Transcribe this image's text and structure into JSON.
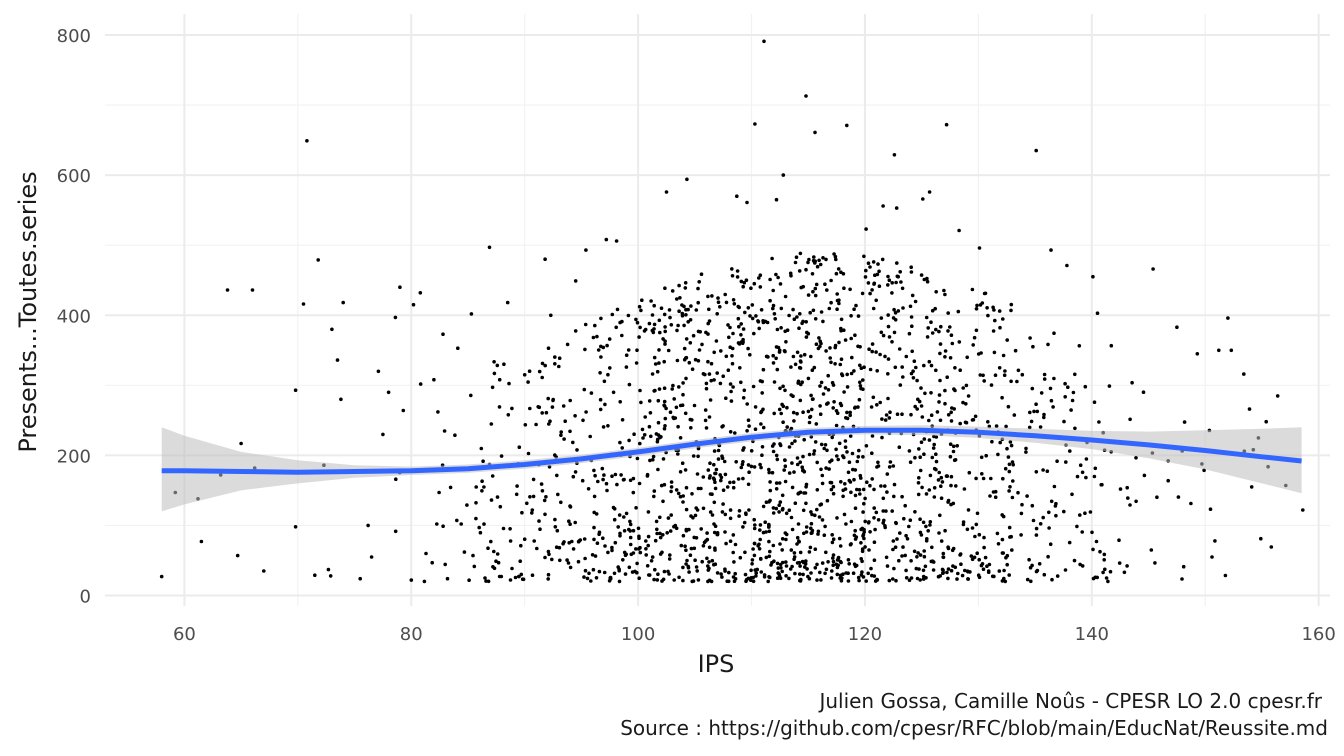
{
  "chart_data": {
    "type": "scatter",
    "xlabel": "IPS",
    "ylabel": "Presents...Toutes.series",
    "xlim": [
      53,
      161
    ],
    "ylim": [
      -15,
      830
    ],
    "x_ticks": [
      60,
      80,
      100,
      120,
      140,
      160
    ],
    "y_ticks": [
      0,
      200,
      400,
      600,
      800
    ],
    "x_tick_labels": [
      "60",
      "80",
      "100",
      "120",
      "140",
      "160"
    ],
    "y_tick_labels": [
      "0",
      "200",
      "400",
      "600",
      "800"
    ],
    "grid": true,
    "caption": [
      "Julien Gossa, Camille Noûs - CPESR LO 2.0 cpesr.fr",
      "Source : https://github.com/cpesr/RFC/blob/main/EducNat/Reussite.md"
    ],
    "point_color": "#000000",
    "smooth_color": "#3366ff",
    "band_color": "#bebebe",
    "smooth": {
      "x": [
        58,
        60,
        65,
        70,
        75,
        80,
        85,
        90,
        95,
        100,
        105,
        110,
        115,
        120,
        125,
        130,
        135,
        140,
        145,
        150,
        155,
        158.5
      ],
      "y": [
        178,
        178,
        177,
        176,
        177,
        178,
        181,
        187,
        195,
        205,
        216,
        226,
        233,
        236,
        236,
        233,
        228,
        222,
        215,
        207,
        198,
        192
      ],
      "ymin": [
        120,
        130,
        150,
        160,
        168,
        172,
        175,
        181,
        189,
        199,
        210,
        220,
        227,
        230,
        229,
        225,
        218,
        209,
        196,
        180,
        160,
        146
      ],
      "ymax": [
        240,
        228,
        205,
        193,
        186,
        184,
        187,
        193,
        201,
        211,
        222,
        232,
        239,
        242,
        243,
        241,
        238,
        235,
        234,
        236,
        238,
        240
      ]
    },
    "outliers": [
      {
        "x": 58,
        "y": 27
      },
      {
        "x": 59.2,
        "y": 147
      },
      {
        "x": 61.2,
        "y": 138
      },
      {
        "x": 61.5,
        "y": 77
      },
      {
        "x": 63.2,
        "y": 172
      },
      {
        "x": 63.8,
        "y": 436
      },
      {
        "x": 64.7,
        "y": 57
      },
      {
        "x": 65,
        "y": 217
      },
      {
        "x": 66,
        "y": 436
      },
      {
        "x": 66.2,
        "y": 182
      },
      {
        "x": 67,
        "y": 35
      },
      {
        "x": 69.8,
        "y": 293
      },
      {
        "x": 69.8,
        "y": 98
      },
      {
        "x": 70.5,
        "y": 416
      },
      {
        "x": 70.8,
        "y": 649
      },
      {
        "x": 71.5,
        "y": 29
      },
      {
        "x": 71.8,
        "y": 479
      },
      {
        "x": 72.3,
        "y": 186
      },
      {
        "x": 72.7,
        "y": 37
      },
      {
        "x": 72.9,
        "y": 28
      },
      {
        "x": 73,
        "y": 380
      },
      {
        "x": 73.5,
        "y": 336
      },
      {
        "x": 74,
        "y": 418
      },
      {
        "x": 73.8,
        "y": 280
      },
      {
        "x": 75.5,
        "y": 24
      },
      {
        "x": 75.9,
        "y": 178
      },
      {
        "x": 76.2,
        "y": 100
      },
      {
        "x": 76.5,
        "y": 55
      },
      {
        "x": 77.1,
        "y": 320
      },
      {
        "x": 77.5,
        "y": 230
      },
      {
        "x": 78,
        "y": 290
      },
      {
        "x": 78.6,
        "y": 397
      },
      {
        "x": 79,
        "y": 440
      },
      {
        "x": 79.3,
        "y": 264
      },
      {
        "x": 80,
        "y": 22
      },
      {
        "x": 80.2,
        "y": 415
      },
      {
        "x": 80.8,
        "y": 432
      },
      {
        "x": 81.3,
        "y": 60
      },
      {
        "x": 82,
        "y": 308
      },
      {
        "x": 82.8,
        "y": 373
      },
      {
        "x": 84.1,
        "y": 353
      },
      {
        "x": 85.3,
        "y": 402
      },
      {
        "x": 86.5,
        "y": 25
      },
      {
        "x": 86.9,
        "y": 497
      },
      {
        "x": 87.8,
        "y": 308
      },
      {
        "x": 88.5,
        "y": 418
      },
      {
        "x": 90,
        "y": 315
      },
      {
        "x": 91.8,
        "y": 480
      },
      {
        "x": 92.3,
        "y": 400
      },
      {
        "x": 94.5,
        "y": 449
      },
      {
        "x": 95.4,
        "y": 493
      },
      {
        "x": 97.2,
        "y": 508
      },
      {
        "x": 98.1,
        "y": 506
      },
      {
        "x": 102.5,
        "y": 576
      },
      {
        "x": 104.3,
        "y": 594
      },
      {
        "x": 108.7,
        "y": 570
      },
      {
        "x": 109.6,
        "y": 561
      },
      {
        "x": 110.3,
        "y": 673
      },
      {
        "x": 111.1,
        "y": 791
      },
      {
        "x": 112.2,
        "y": 565
      },
      {
        "x": 112.8,
        "y": 600
      },
      {
        "x": 114.8,
        "y": 713
      },
      {
        "x": 115.6,
        "y": 661
      },
      {
        "x": 118.4,
        "y": 671
      },
      {
        "x": 120.1,
        "y": 523
      },
      {
        "x": 121.6,
        "y": 556
      },
      {
        "x": 122.6,
        "y": 629
      },
      {
        "x": 122.8,
        "y": 553
      },
      {
        "x": 125.1,
        "y": 566
      },
      {
        "x": 125.7,
        "y": 576
      },
      {
        "x": 127.2,
        "y": 672
      },
      {
        "x": 128.3,
        "y": 521
      },
      {
        "x": 130.1,
        "y": 496
      },
      {
        "x": 135.1,
        "y": 635
      },
      {
        "x": 136.4,
        "y": 493
      },
      {
        "x": 137.8,
        "y": 471
      },
      {
        "x": 140.1,
        "y": 455
      },
      {
        "x": 140.5,
        "y": 403
      },
      {
        "x": 141.3,
        "y": 25
      },
      {
        "x": 145.4,
        "y": 466
      },
      {
        "x": 147.5,
        "y": 383
      },
      {
        "x": 149.3,
        "y": 345
      },
      {
        "x": 150.6,
        "y": 55
      },
      {
        "x": 151.2,
        "y": 350
      },
      {
        "x": 152,
        "y": 396
      },
      {
        "x": 152.3,
        "y": 350
      },
      {
        "x": 153.4,
        "y": 316
      },
      {
        "x": 153.9,
        "y": 266
      },
      {
        "x": 154.1,
        "y": 155
      },
      {
        "x": 154.9,
        "y": 81
      },
      {
        "x": 157.1,
        "y": 157
      },
      {
        "x": 158.6,
        "y": 122
      }
    ],
    "dense_cloud": {
      "approx_points": 2000,
      "x_range": [
        78,
        158
      ],
      "x_peak": 114,
      "y_range": [
        20,
        520
      ],
      "y_typical": 180
    }
  }
}
